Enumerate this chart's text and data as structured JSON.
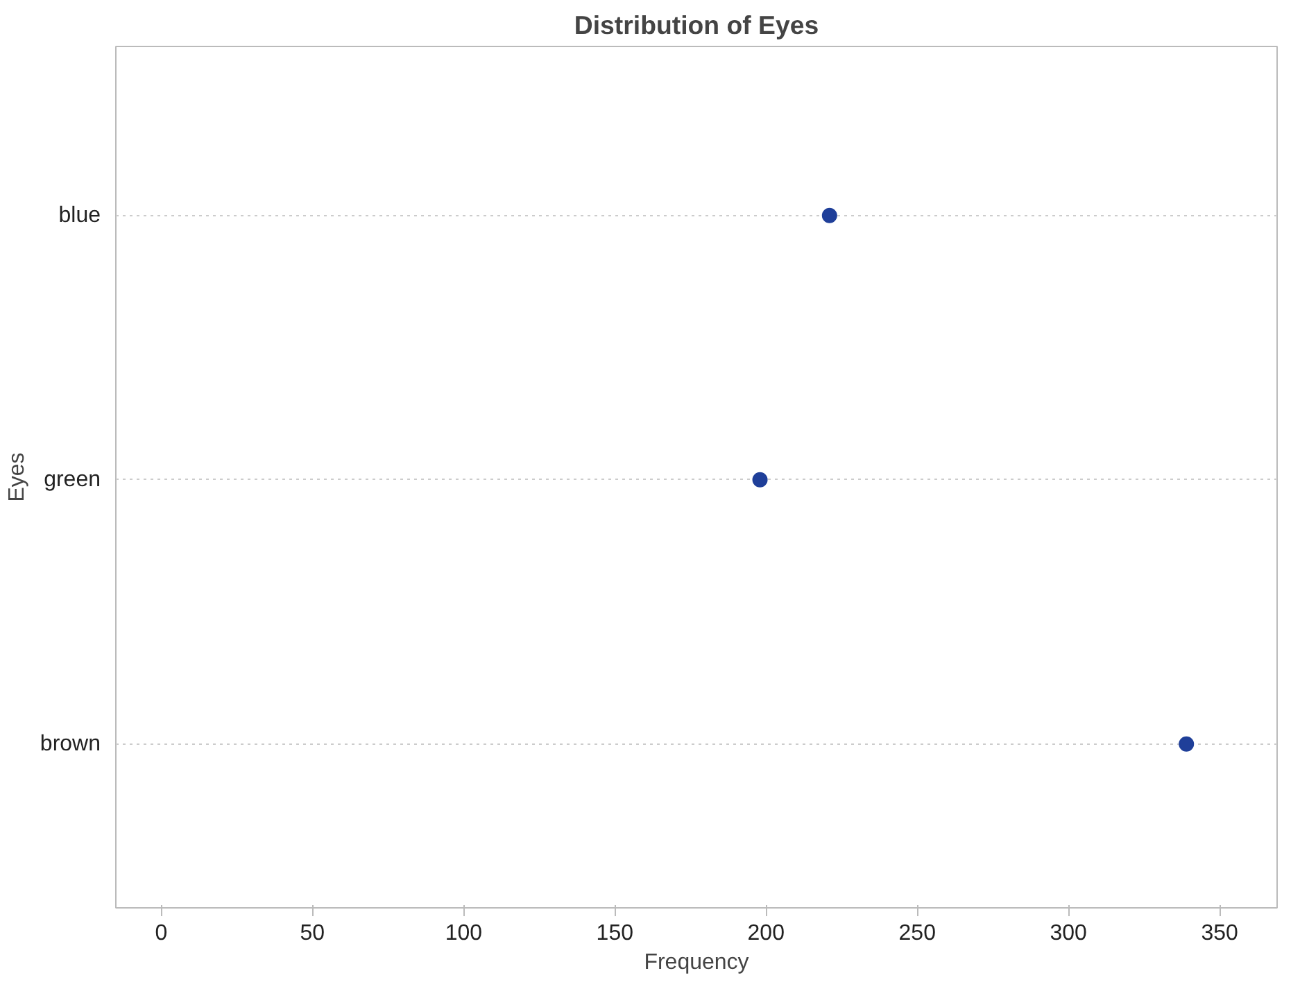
{
  "chart_data": {
    "type": "scatter",
    "orientation": "horizontal",
    "title": "Distribution of Eyes",
    "xlabel": "Frequency",
    "ylabel": "Eyes",
    "categories": [
      "blue",
      "green",
      "brown"
    ],
    "series": [
      {
        "color": "#1f3f99",
        "values": [
          221,
          198,
          339
        ]
      }
    ],
    "xlim": [
      -15,
      369
    ],
    "xticks": [
      0,
      50,
      100,
      150,
      200,
      250,
      300,
      350
    ],
    "grid": "y",
    "marker": "circle"
  }
}
